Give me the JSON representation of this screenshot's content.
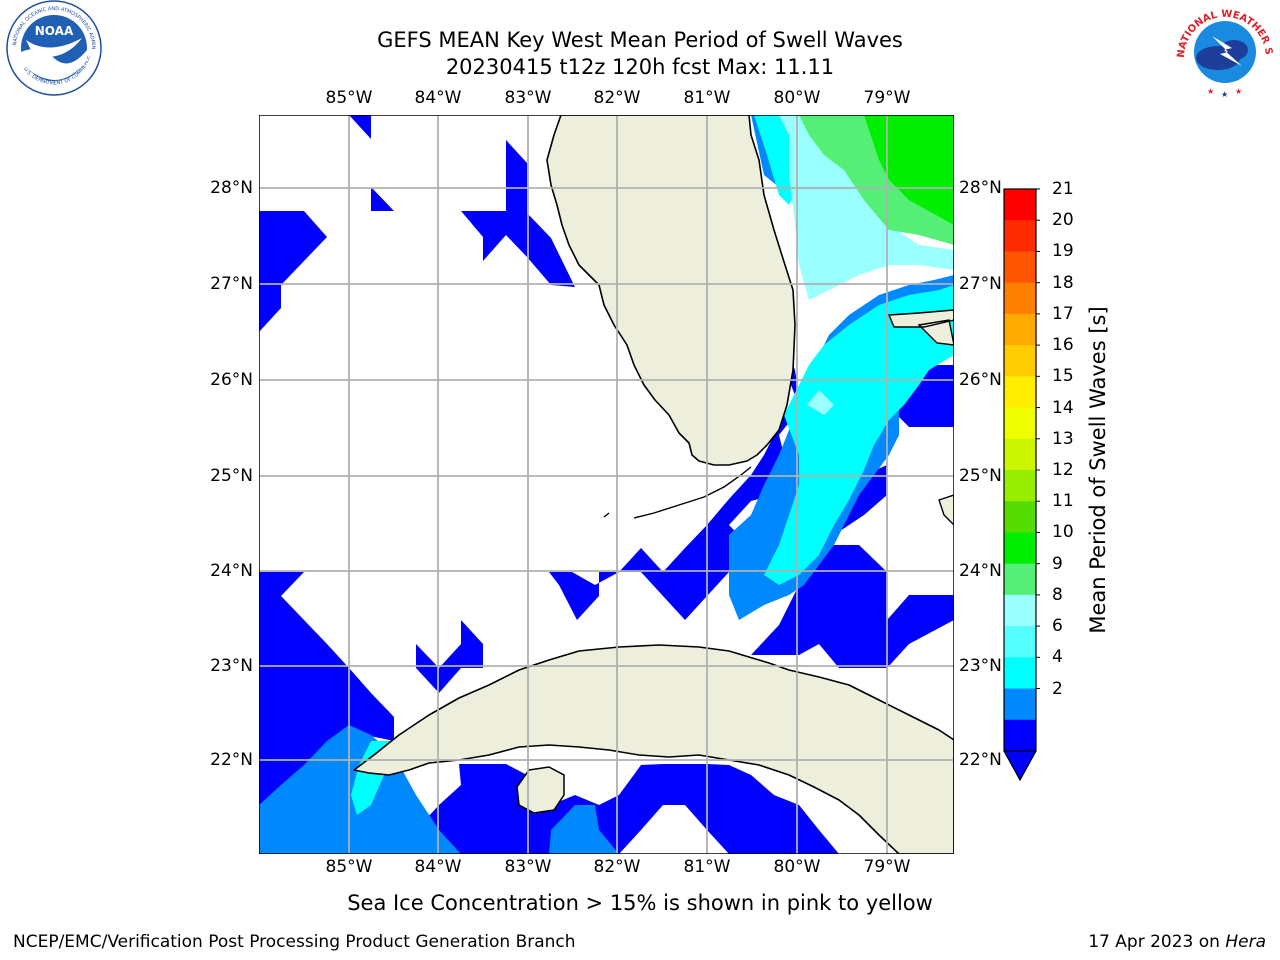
{
  "header": {
    "title_line1": "GEFS MEAN Key West Mean Period of Swell Waves",
    "title_line2": "20230415 t12z 120h fcst   Max: 11.11"
  },
  "logos": {
    "noaa_text": "NOAA",
    "noaa_ring_top": "NATIONAL OCEANIC AND ATMOSPHERIC ADMINISTRATION",
    "noaa_ring_bottom": "U.S. DEPARTMENT OF COMMERCE",
    "nws_ring": "NATIONAL WEATHER SERVICE"
  },
  "map": {
    "lon_labels": [
      "85°W",
      "84°W",
      "83°W",
      "82°W",
      "81°W",
      "80°W",
      "79°W"
    ],
    "lat_labels": [
      "28°N",
      "27°N",
      "26°N",
      "25°N",
      "24°N",
      "23°N",
      "22°N"
    ],
    "land_color": "#eeeedd",
    "grid_color": "#b0b0b0"
  },
  "colorbar": {
    "label": "Mean Period of Swell Waves [s]",
    "ticks": [
      "21",
      "20",
      "19",
      "18",
      "17",
      "16",
      "15",
      "14",
      "13",
      "12",
      "11",
      "10",
      "9",
      "8",
      "6",
      "4",
      "2"
    ],
    "colors": [
      "#ff0000",
      "#ff2a00",
      "#ff5500",
      "#ff8000",
      "#ffaa00",
      "#ffcc00",
      "#ffee00",
      "#eeff00",
      "#ccf500",
      "#99ee00",
      "#55dd00",
      "#00ee00",
      "#55ee77",
      "#99ffff",
      "#55ffff",
      "#00ffff",
      "#0088ff",
      "#0000ff"
    ],
    "under_color": "#0000ff"
  },
  "note": "Sea Ice Concentration > 15% is shown in pink to yellow",
  "footer": {
    "left": "NCEP/EMC/Verification Post Processing Product Generation Branch",
    "right_date": "17 Apr 2023 on ",
    "right_host": "Hera"
  }
}
